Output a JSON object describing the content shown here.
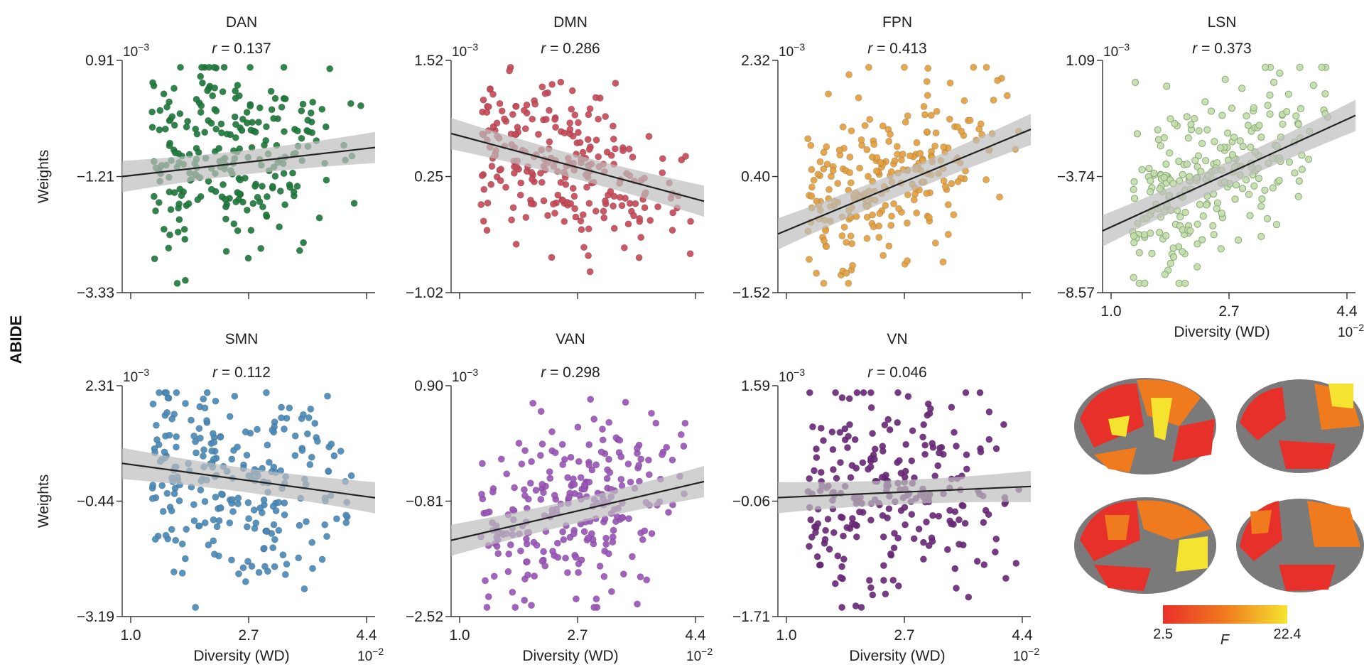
{
  "figure": {
    "row_label": "ABIDE",
    "y_axis_label": "Weights",
    "x_axis_label": "Diversity (WD)",
    "x_exponent": "10",
    "x_exponent_power": "−2",
    "y_exponent": "10",
    "y_exponent_power": "−3",
    "r_prefix": "r",
    "colorbar": {
      "min_label": "2.5",
      "max_label": "22.4",
      "label": "F"
    }
  },
  "colors": {
    "DAN": "#1e7a3c",
    "DMN": "#c64a58",
    "FPN": "#e2a040",
    "LSN": "#c2deaa",
    "SMN": "#4a8ab8",
    "VAN": "#9a56b8",
    "VN": "#6a2a7a",
    "fit_line": "#222222",
    "ci_band": "#bdbdbd",
    "brain_gray": "#7a7a7a",
    "heat_low": "#e8302a",
    "heat_mid": "#f07a1e",
    "heat_high": "#f4e430"
  },
  "chart_data": [
    {
      "type": "scatter",
      "title": "DAN",
      "r": "0.137",
      "ylim": [
        -3.33,
        0.91
      ],
      "yticks": [
        "0.91",
        "−1.21",
        "−3.33"
      ],
      "xlim": [
        1.0,
        4.4
      ],
      "xticks": [],
      "xlabel": "",
      "ylabel": "Weights",
      "fit": {
        "y_at_xmin": -1.21,
        "y_at_xmax": -0.68
      },
      "y_center": -0.8,
      "y_spread": 0.85,
      "n_points": 250,
      "seed": 11
    },
    {
      "type": "scatter",
      "title": "DMN",
      "r": "0.286",
      "ylim": [
        -1.02,
        1.52
      ],
      "yticks": [
        "1.52",
        "0.25",
        "−1.02"
      ],
      "xlim": [
        1.0,
        4.4
      ],
      "xticks": [],
      "xlabel": "",
      "ylabel": "",
      "fit": {
        "y_at_xmin": 0.72,
        "y_at_xmax": -0.02
      },
      "y_center": 0.32,
      "y_spread": 0.42,
      "n_points": 250,
      "seed": 23
    },
    {
      "type": "scatter",
      "title": "FPN",
      "r": "0.413",
      "ylim": [
        -1.52,
        2.32
      ],
      "yticks": [
        "2.32",
        "0.40",
        "−1.52"
      ],
      "xlim": [
        1.0,
        4.4
      ],
      "xticks": [],
      "xlabel": "",
      "ylabel": "",
      "fit": {
        "y_at_xmin": -0.55,
        "y_at_xmax": 1.18
      },
      "y_center": 0.5,
      "y_spread": 0.65,
      "n_points": 250,
      "seed": 37
    },
    {
      "type": "scatter",
      "title": "LSN",
      "r": "0.373",
      "ylim": [
        -8.57,
        1.09
      ],
      "yticks": [
        "1.09",
        "−3.74",
        "−8.57"
      ],
      "xlim": [
        1.0,
        4.4
      ],
      "xticks": [
        "1.0",
        "2.7",
        "4.4"
      ],
      "xlabel": "Diversity (WD)",
      "ylabel": "",
      "fit": {
        "y_at_xmin": -6.0,
        "y_at_xmax": -1.2
      },
      "y_center": -3.2,
      "y_spread": 1.9,
      "n_points": 250,
      "seed": 41
    },
    {
      "type": "scatter",
      "title": "SMN",
      "r": "0.112",
      "ylim": [
        -3.19,
        2.31
      ],
      "yticks": [
        "2.31",
        "−0.44",
        "−3.19"
      ],
      "xlim": [
        1.0,
        4.4
      ],
      "xticks": [
        "1.0",
        "2.7",
        "4.4"
      ],
      "xlabel": "Diversity (WD)",
      "ylabel": "Weights",
      "fit": {
        "y_at_xmin": 0.46,
        "y_at_xmax": -0.36
      },
      "y_center": 0.0,
      "y_spread": 1.1,
      "n_points": 250,
      "seed": 53
    },
    {
      "type": "scatter",
      "title": "VAN",
      "r": "0.298",
      "ylim": [
        -2.52,
        0.9
      ],
      "yticks": [
        "0.90",
        "−0.81",
        "−2.52"
      ],
      "xlim": [
        1.0,
        4.4
      ],
      "xticks": [
        "1.0",
        "2.7",
        "4.4"
      ],
      "xlabel": "Diversity (WD)",
      "ylabel": "",
      "fit": {
        "y_at_xmin": -1.39,
        "y_at_xmax": -0.52
      },
      "y_center": -0.85,
      "y_spread": 0.65,
      "n_points": 250,
      "seed": 67
    },
    {
      "type": "scatter",
      "title": "VN",
      "r": "0.046",
      "ylim": [
        -1.71,
        1.59
      ],
      "yticks": [
        "1.59",
        "−0.06",
        "−1.71"
      ],
      "xlim": [
        1.0,
        4.4
      ],
      "xticks": [
        "1.0",
        "2.7",
        "4.4"
      ],
      "xlabel": "Diversity (WD)",
      "ylabel": "",
      "fit": {
        "y_at_xmin": -0.01,
        "y_at_xmax": 0.15
      },
      "y_center": 0.05,
      "y_spread": 0.7,
      "n_points": 250,
      "seed": 79
    }
  ]
}
